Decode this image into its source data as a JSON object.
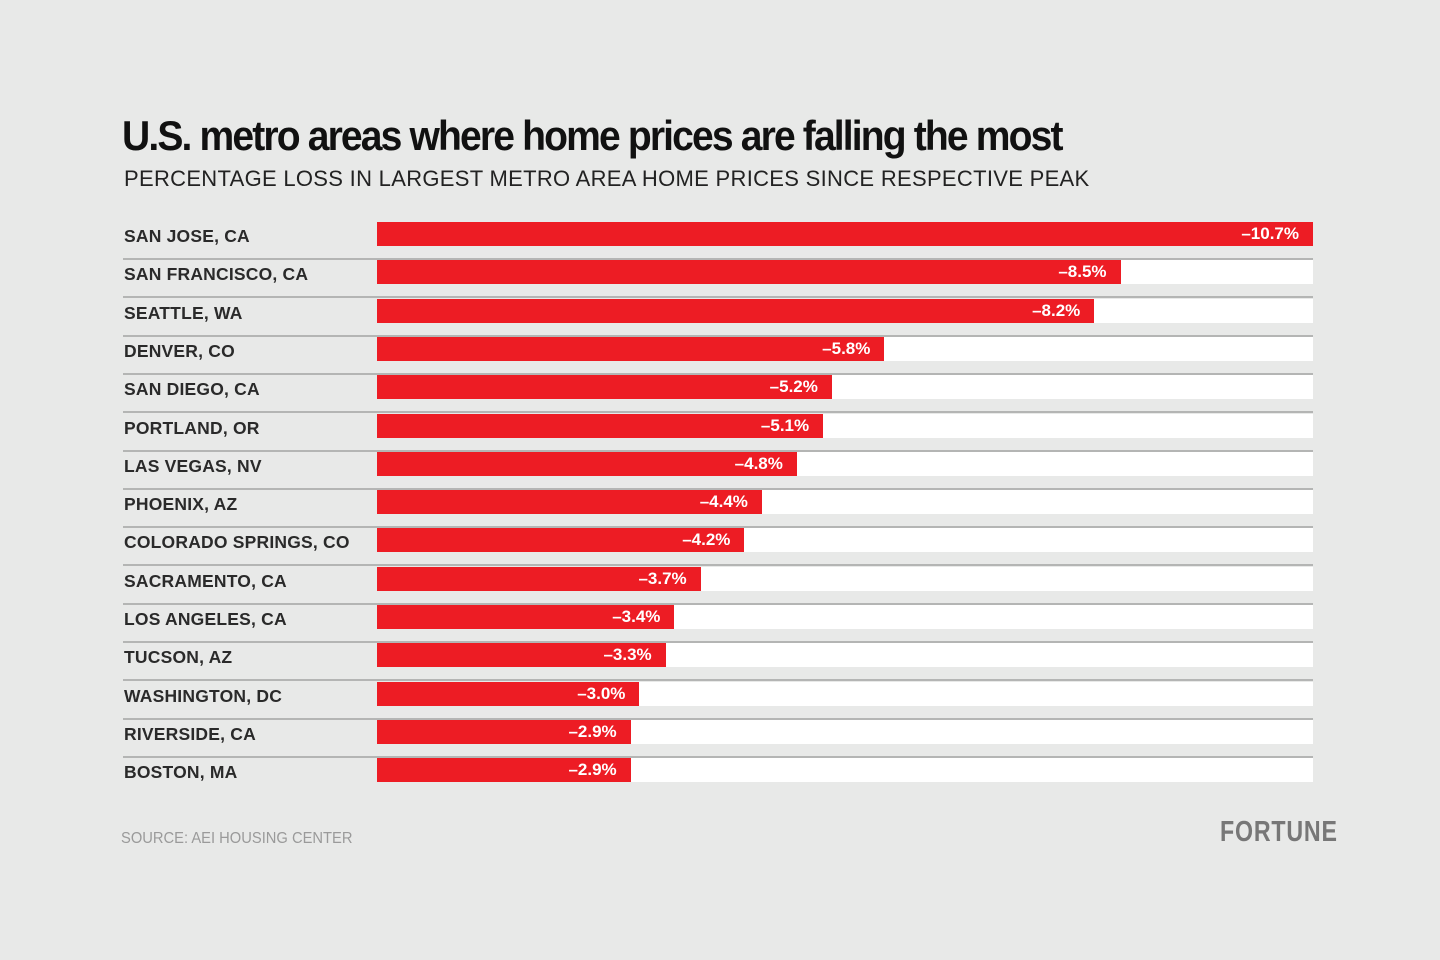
{
  "chart_data": {
    "type": "bar",
    "orientation": "horizontal",
    "title": "U.S. metro areas where home prices are falling the most",
    "subtitle": "PERCENTAGE LOSS IN LARGEST METRO AREA HOME PRICES SINCE RESPECTIVE PEAK",
    "categories": [
      "SAN JOSE, CA",
      "SAN FRANCISCO, CA",
      "SEATTLE, WA",
      "DENVER, CO",
      "SAN DIEGO, CA",
      "PORTLAND, OR",
      "LAS VEGAS, NV",
      "PHOENIX, AZ",
      "COLORADO SPRINGS, CO",
      "SACRAMENTO, CA",
      "LOS ANGELES, CA",
      "TUCSON, AZ",
      "WASHINGTON, DC",
      "RIVERSIDE, CA",
      "BOSTON, MA"
    ],
    "values": [
      -10.7,
      -8.5,
      -8.2,
      -5.8,
      -5.2,
      -5.1,
      -4.8,
      -4.4,
      -4.2,
      -3.7,
      -3.4,
      -3.3,
      -3.0,
      -2.9,
      -2.9
    ],
    "data_labels": [
      "–10.7%",
      "–8.5%",
      "–8.2%",
      "–5.8%",
      "–5.2%",
      "–5.1%",
      "–4.8%",
      "–4.4%",
      "–4.2%",
      "–3.7%",
      "–3.4%",
      "–3.3%",
      "–3.0%",
      "–2.9%",
      "–2.9%"
    ],
    "xlim": [
      0,
      -10.7
    ],
    "grid": false,
    "bar_color": "#ed1c24",
    "track_color": "#ffffff"
  },
  "footer": {
    "source": "SOURCE: AEI HOUSING CENTER",
    "logo": "FORTUNE"
  }
}
